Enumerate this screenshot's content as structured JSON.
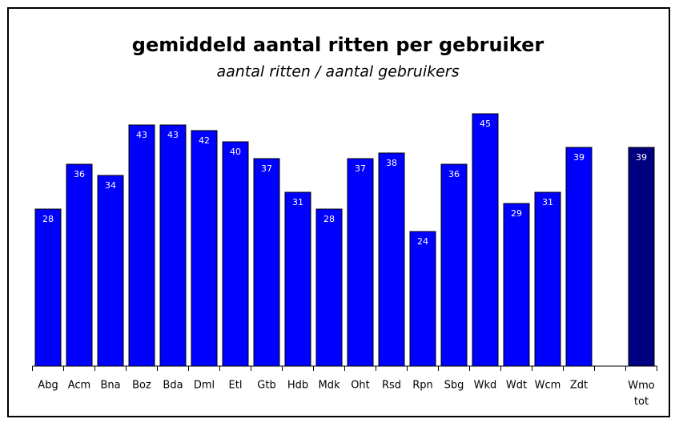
{
  "chart_data": {
    "type": "bar",
    "title": "gemiddeld aantal ritten per gebruiker",
    "subtitle": "aantal ritten / aantal gebruikers",
    "categories": [
      "Abg",
      "Acm",
      "Bna",
      "Boz",
      "Bda",
      "Dml",
      "Etl",
      "Gtb",
      "Hdb",
      "Mdk",
      "Oht",
      "Rsd",
      "Rpn",
      "Sbg",
      "Wkd",
      "Wdt",
      "Wcm",
      "Zdt",
      null,
      "Wmo tot"
    ],
    "values": [
      28,
      36,
      34,
      43,
      43,
      42,
      40,
      37,
      31,
      28,
      37,
      38,
      24,
      36,
      45,
      29,
      31,
      39,
      null,
      39
    ],
    "colors": [
      "#0000ff",
      "#0000ff",
      "#0000ff",
      "#0000ff",
      "#0000ff",
      "#0000ff",
      "#0000ff",
      "#0000ff",
      "#0000ff",
      "#0000ff",
      "#0000ff",
      "#0000ff",
      "#0000ff",
      "#0000ff",
      "#0000ff",
      "#0000ff",
      "#0000ff",
      "#0000ff",
      null,
      "#000080"
    ],
    "ylim": [
      0,
      50
    ]
  }
}
